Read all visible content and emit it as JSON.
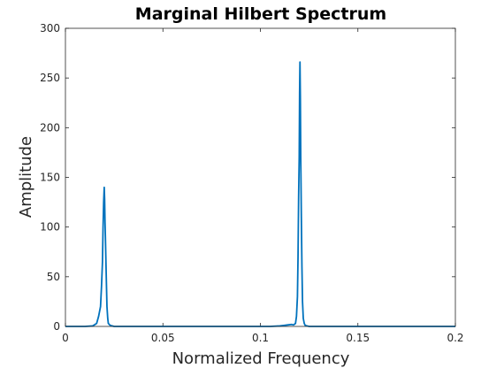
{
  "chart_data": {
    "type": "line",
    "title": "Marginal Hilbert Spectrum",
    "xlabel": "Normalized Frequency",
    "ylabel": "Amplitude",
    "xlim": [
      0,
      0.2
    ],
    "ylim": [
      0,
      300
    ],
    "xticks": [
      "0",
      "0.05",
      "0.1",
      "0.15",
      "0.2"
    ],
    "yticks": [
      "0",
      "50",
      "100",
      "150",
      "200",
      "250",
      "300"
    ],
    "grid": false,
    "line_color": "#0072BD",
    "series": [
      {
        "x": [
          0,
          0.005,
          0.01,
          0.014,
          0.016,
          0.017,
          0.018,
          0.0185,
          0.019,
          0.0193,
          0.0196,
          0.0199,
          0.0201,
          0.0203,
          0.0205,
          0.0207,
          0.021,
          0.0213,
          0.0217,
          0.022,
          0.023,
          0.025,
          0.03,
          0.04,
          0.05,
          0.06,
          0.07,
          0.08,
          0.09,
          0.1,
          0.105,
          0.11,
          0.112,
          0.114,
          0.116,
          0.117,
          0.118,
          0.1185,
          0.119,
          0.1193,
          0.1196,
          0.1199,
          0.1201,
          0.1203,
          0.1205,
          0.1207,
          0.121,
          0.1213,
          0.1216,
          0.122,
          0.1225,
          0.123,
          0.124,
          0.125,
          0.13,
          0.14,
          0.15,
          0.16,
          0.17,
          0.18,
          0.19,
          0.2
        ],
        "y": [
          0,
          0,
          0,
          0.5,
          3,
          10,
          20,
          40,
          65,
          100,
          125,
          140,
          128,
          105,
          90,
          72,
          45,
          20,
          8,
          3,
          1,
          0,
          0,
          0,
          0,
          0,
          0,
          0,
          0,
          0,
          0,
          0.5,
          1,
          1.5,
          2,
          1.5,
          3,
          10,
          30,
          70,
          130,
          170,
          235,
          266,
          230,
          170,
          110,
          60,
          25,
          8,
          3,
          1,
          0.5,
          0,
          0,
          0,
          0,
          0,
          0,
          0,
          0,
          0
        ]
      }
    ]
  }
}
